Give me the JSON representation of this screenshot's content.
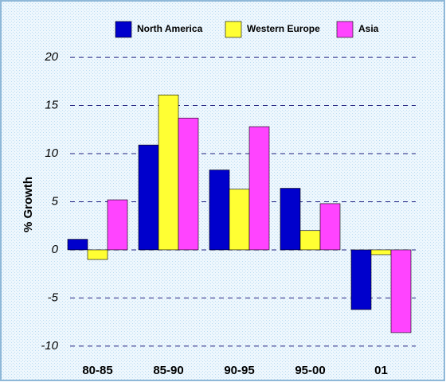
{
  "chart_data": {
    "type": "bar",
    "categories": [
      "80-85",
      "85-90",
      "90-95",
      "95-00",
      "01"
    ],
    "y_label": "% Growth",
    "series": [
      {
        "name": "North America",
        "color": "#0000cc",
        "values": [
          1.1,
          10.9,
          8.3,
          6.4,
          -6.2
        ]
      },
      {
        "name": "Western Europe",
        "color": "#ffff33",
        "values": [
          -1.0,
          16.1,
          6.3,
          2.0,
          -0.5
        ]
      },
      {
        "name": "Asia",
        "color": "#ff44ff",
        "values": [
          5.2,
          13.7,
          12.8,
          4.8,
          -8.6
        ]
      }
    ],
    "ylim": [
      -11.5,
      21
    ],
    "yticks": [
      -10,
      -5,
      0,
      5,
      10,
      15,
      20
    ],
    "grid": true
  }
}
